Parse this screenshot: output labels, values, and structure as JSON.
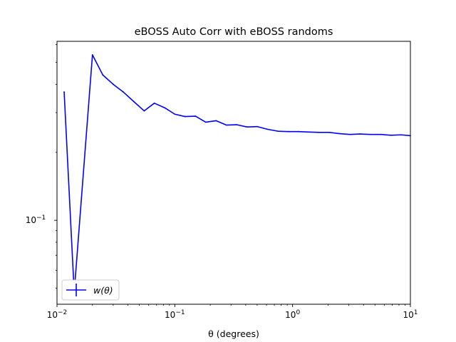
{
  "chart_data": {
    "type": "line",
    "title": "eBOSS Auto Corr with eBOSS randoms",
    "xlabel": "θ (degrees)",
    "ylabel": "",
    "xscale": "log",
    "yscale": "log",
    "xlim": [
      0.01,
      10
    ],
    "ylim": [
      0.0425,
      0.62
    ],
    "grid": false,
    "legend_position": "lower-left",
    "x_ticks": [
      {
        "value": 0.01,
        "base": "10",
        "exp": "−2"
      },
      {
        "value": 0.1,
        "base": "10",
        "exp": "−1"
      },
      {
        "value": 1,
        "base": "10",
        "exp": "0"
      },
      {
        "value": 10,
        "base": "10",
        "exp": "1"
      }
    ],
    "y_ticks": [
      {
        "value": 0.1,
        "base": "10",
        "exp": "−1"
      }
    ],
    "series": [
      {
        "name": "w(θ)",
        "color": "#0000ff",
        "x": [
          0.0115,
          0.014,
          0.02,
          0.0245,
          0.03,
          0.0365,
          0.045,
          0.055,
          0.067,
          0.082,
          0.1,
          0.122,
          0.15,
          0.183,
          0.224,
          0.274,
          0.335,
          0.41,
          0.5,
          0.61,
          0.75,
          0.92,
          1.12,
          1.37,
          1.68,
          2.05,
          2.5,
          3.06,
          3.74,
          4.58,
          5.6,
          6.84,
          8.37,
          10.0
        ],
        "values": [
          0.37,
          0.048,
          0.54,
          0.44,
          0.4,
          0.37,
          0.335,
          0.305,
          0.33,
          0.315,
          0.295,
          0.288,
          0.289,
          0.272,
          0.276,
          0.264,
          0.265,
          0.259,
          0.26,
          0.253,
          0.248,
          0.247,
          0.247,
          0.246,
          0.245,
          0.245,
          0.242,
          0.24,
          0.241,
          0.24,
          0.24,
          0.238,
          0.239,
          0.237
        ]
      }
    ]
  }
}
